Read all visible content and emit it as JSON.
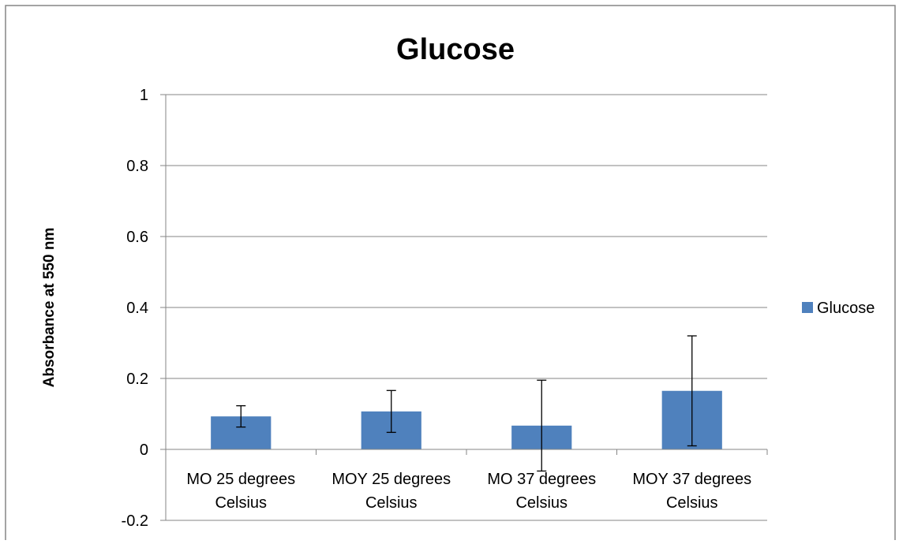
{
  "chart_data": {
    "type": "bar",
    "title": "Glucose",
    "xlabel": "",
    "ylabel": "Absorbance at 550 nm",
    "categories": [
      [
        "MO 25 degrees",
        "Celsius"
      ],
      [
        "MOY 25 degrees",
        "Celsius"
      ],
      [
        "MO 37 degrees",
        "Celsius"
      ],
      [
        "MOY 37 degrees",
        "Celsius"
      ]
    ],
    "series": [
      {
        "name": "Glucose",
        "color": "#4F81BD",
        "values": [
          0.093,
          0.107,
          0.067,
          0.165
        ],
        "error_bars": [
          0.03,
          0.059,
          0.128,
          0.155
        ]
      }
    ],
    "ylim": [
      -0.2,
      1
    ],
    "yticks": [
      -0.2,
      0,
      0.2,
      0.4,
      0.6,
      0.8,
      1
    ],
    "ytick_labels": [
      "-0.2",
      "0",
      "0.2",
      "0.4",
      "0.6",
      "0.8",
      "1"
    ],
    "grid": true,
    "legend_position": "right"
  }
}
